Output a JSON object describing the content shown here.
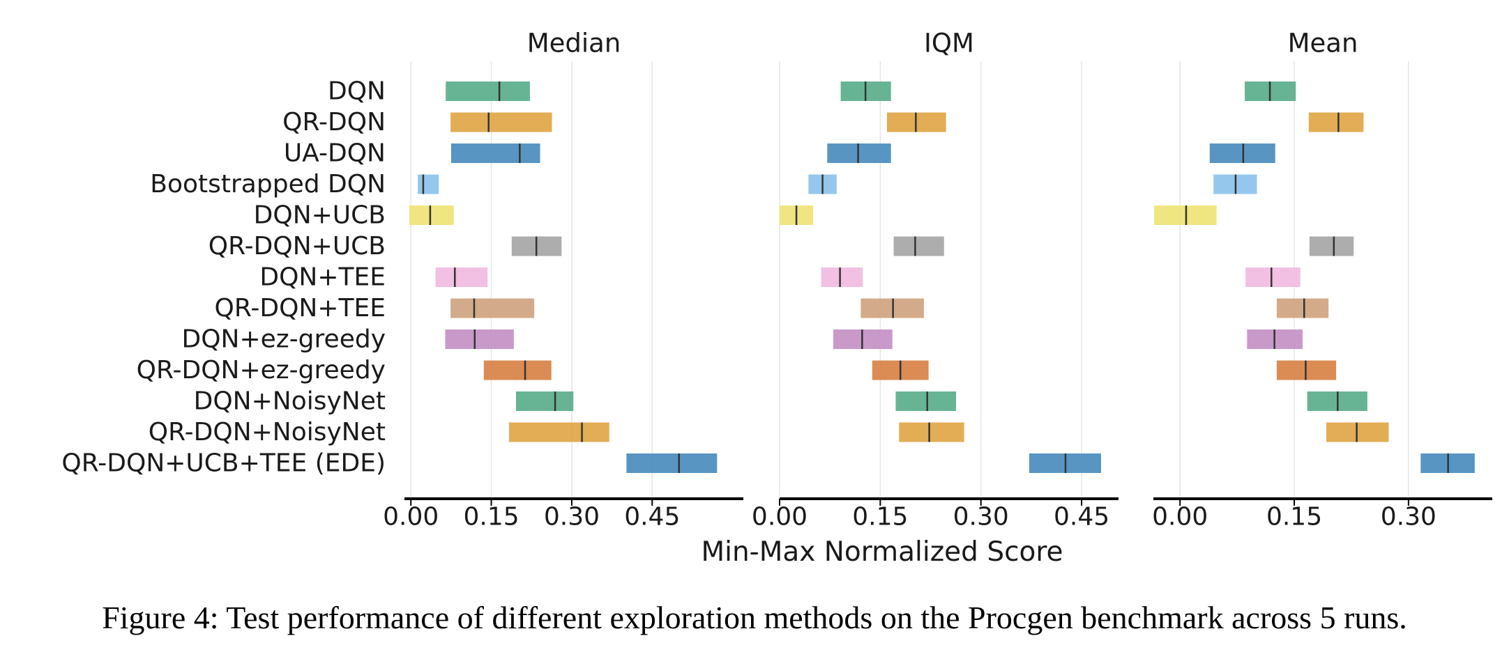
{
  "chart_data": {
    "type": "interval",
    "methods": [
      "DQN",
      "QR-DQN",
      "UA-DQN",
      "Bootstrapped DQN",
      "DQN+UCB",
      "QR-DQN+UCB",
      "DQN+TEE",
      "QR-DQN+TEE",
      "DQN+ez-greedy",
      "QR-DQN+ez-greedy",
      "DQN+NoisyNet",
      "QR-DQN+NoisyNet",
      "QR-DQN+UCB+TEE (EDE)"
    ],
    "colors": [
      "#5fb08e",
      "#e0a94b",
      "#4f8fc0",
      "#8ec4ea",
      "#eee57a",
      "#a9a9a9",
      "#f0bde2",
      "#d1a784",
      "#c693c7",
      "#d8864b",
      "#5fb08e",
      "#e0a94b",
      "#4f8fc0"
    ],
    "xlabel": "Min-Max Normalized Score",
    "panels": [
      {
        "title": "Median",
        "xlim": [
          -0.012,
          0.62
        ],
        "ticks": [
          0.0,
          0.15,
          0.3,
          0.45
        ],
        "tick_labels": [
          "0.00",
          "0.15",
          "0.30",
          "0.45"
        ],
        "lower": [
          0.065,
          0.074,
          0.075,
          0.013,
          -0.003,
          0.188,
          0.046,
          0.074,
          0.064,
          0.136,
          0.196,
          0.183,
          0.402
        ],
        "point": [
          0.165,
          0.145,
          0.203,
          0.023,
          0.036,
          0.234,
          0.082,
          0.118,
          0.119,
          0.213,
          0.269,
          0.319,
          0.5
        ],
        "upper": [
          0.222,
          0.263,
          0.241,
          0.052,
          0.08,
          0.281,
          0.143,
          0.23,
          0.192,
          0.262,
          0.303,
          0.37,
          0.571
        ]
      },
      {
        "title": "IQM",
        "xlim": [
          0.0,
          0.505
        ],
        "ticks": [
          0.0,
          0.15,
          0.3,
          0.45
        ],
        "tick_labels": [
          "0.00",
          "0.15",
          "0.30",
          "0.45"
        ],
        "lower": [
          0.091,
          0.16,
          0.071,
          0.043,
          0.0,
          0.17,
          0.062,
          0.121,
          0.08,
          0.138,
          0.173,
          0.178,
          0.372
        ],
        "point": [
          0.128,
          0.203,
          0.117,
          0.064,
          0.025,
          0.202,
          0.09,
          0.169,
          0.123,
          0.18,
          0.22,
          0.223,
          0.426
        ],
        "upper": [
          0.166,
          0.248,
          0.166,
          0.085,
          0.05,
          0.245,
          0.124,
          0.215,
          0.168,
          0.222,
          0.263,
          0.275,
          0.479
        ]
      },
      {
        "title": "Mean",
        "xlim": [
          -0.035,
          0.41
        ],
        "ticks": [
          0.0,
          0.15,
          0.3
        ],
        "tick_labels": [
          "0.00",
          "0.15",
          "0.30"
        ],
        "lower": [
          0.085,
          0.169,
          0.039,
          0.044,
          -0.034,
          0.17,
          0.086,
          0.127,
          0.088,
          0.127,
          0.167,
          0.192,
          0.316
        ],
        "point": [
          0.118,
          0.208,
          0.083,
          0.073,
          0.008,
          0.202,
          0.12,
          0.163,
          0.124,
          0.165,
          0.207,
          0.232,
          0.352
        ],
        "upper": [
          0.152,
          0.241,
          0.125,
          0.101,
          0.048,
          0.228,
          0.158,
          0.195,
          0.161,
          0.205,
          0.246,
          0.274,
          0.387
        ]
      }
    ]
  },
  "caption": "Figure 4: Test performance of different exploration methods on the Procgen benchmark across 5 runs."
}
